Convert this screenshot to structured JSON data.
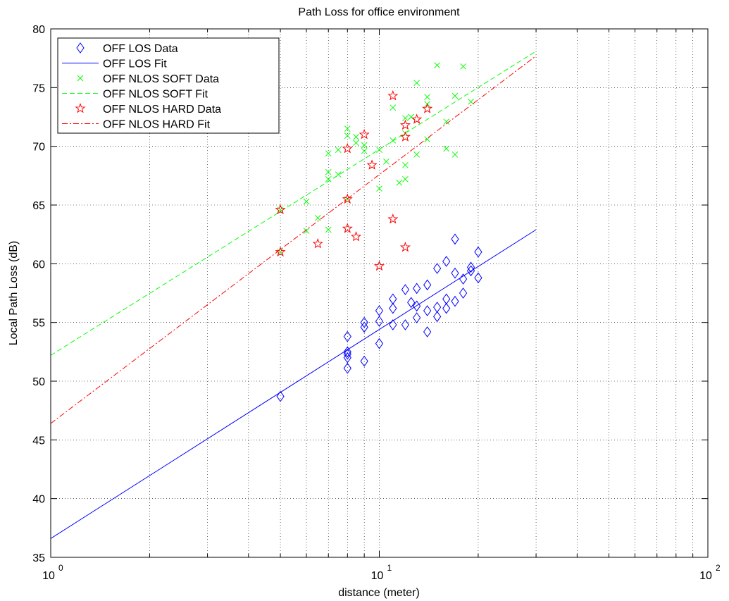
{
  "chart_data": {
    "type": "scatter",
    "title": "Path Loss for office environment",
    "xlabel": "distance (meter)",
    "ylabel": "Local Path Loss (dB)",
    "xscale": "log",
    "xlim": [
      1,
      100
    ],
    "ylim": [
      35,
      80
    ],
    "grid": true,
    "legend_position": "top-left",
    "x_ticks": [
      {
        "value": 1,
        "base": "10",
        "exp": "0"
      },
      {
        "value": 10,
        "base": "10",
        "exp": "1"
      },
      {
        "value": 100,
        "base": "10",
        "exp": "2"
      }
    ],
    "y_ticks": [
      "35",
      "40",
      "45",
      "50",
      "55",
      "60",
      "65",
      "70",
      "75",
      "80"
    ],
    "series": [
      {
        "name": "OFF LOS Data",
        "kind": "points",
        "marker": "diamond",
        "color": "#0000ff",
        "points": [
          [
            5,
            48.7
          ],
          [
            8,
            53.8
          ],
          [
            8,
            52.5
          ],
          [
            8,
            52.3
          ],
          [
            8,
            52.0
          ],
          [
            8,
            51.1
          ],
          [
            9,
            55.0
          ],
          [
            9,
            54.6
          ],
          [
            9,
            51.7
          ],
          [
            10,
            56.0
          ],
          [
            10,
            55.1
          ],
          [
            10,
            53.2
          ],
          [
            11,
            57.0
          ],
          [
            11,
            56.2
          ],
          [
            11,
            54.8
          ],
          [
            12,
            57.8
          ],
          [
            12,
            54.8
          ],
          [
            12.5,
            56.7
          ],
          [
            13,
            57.9
          ],
          [
            13,
            56.4
          ],
          [
            13,
            55.4
          ],
          [
            14,
            58.2
          ],
          [
            14,
            56.0
          ],
          [
            14,
            54.2
          ],
          [
            15,
            59.6
          ],
          [
            15,
            56.3
          ],
          [
            15,
            55.5
          ],
          [
            16,
            60.2
          ],
          [
            16,
            57.0
          ],
          [
            16,
            56.2
          ],
          [
            17,
            62.1
          ],
          [
            17,
            59.2
          ],
          [
            17,
            56.8
          ],
          [
            18,
            58.7
          ],
          [
            18,
            57.5
          ],
          [
            19,
            59.7
          ],
          [
            19,
            59.4
          ],
          [
            20,
            61.0
          ],
          [
            20,
            58.8
          ]
        ]
      },
      {
        "name": "OFF LOS Fit",
        "kind": "line",
        "dash": "solid",
        "color": "#0000ff",
        "points": [
          [
            1,
            36.6
          ],
          [
            30,
            62.9
          ]
        ]
      },
      {
        "name": "OFF NLOS SOFT Data",
        "kind": "points",
        "marker": "x",
        "color": "#00ff00",
        "points": [
          [
            5,
            64.6
          ],
          [
            5,
            61.0
          ],
          [
            6,
            65.3
          ],
          [
            6,
            62.8
          ],
          [
            6.5,
            63.9
          ],
          [
            7,
            69.4
          ],
          [
            7,
            67.8
          ],
          [
            7,
            67.2
          ],
          [
            7,
            62.9
          ],
          [
            7.5,
            69.7
          ],
          [
            7.5,
            67.6
          ],
          [
            8,
            71.5
          ],
          [
            8,
            70.9
          ],
          [
            8,
            65.5
          ],
          [
            8.5,
            70.8
          ],
          [
            8.5,
            70.3
          ],
          [
            9,
            70.1
          ],
          [
            9,
            69.6
          ],
          [
            10,
            69.7
          ],
          [
            10,
            66.4
          ],
          [
            10.5,
            68.7
          ],
          [
            11,
            73.3
          ],
          [
            11,
            70.5
          ],
          [
            11.5,
            66.9
          ],
          [
            12,
            72.4
          ],
          [
            12,
            71.1
          ],
          [
            12,
            68.4
          ],
          [
            12,
            67.2
          ],
          [
            12.5,
            72.5
          ],
          [
            13,
            75.4
          ],
          [
            13,
            69.3
          ],
          [
            14,
            74.2
          ],
          [
            14,
            73.6
          ],
          [
            14,
            70.6
          ],
          [
            15,
            76.9
          ],
          [
            16,
            72.1
          ],
          [
            16,
            69.8
          ],
          [
            17,
            74.3
          ],
          [
            17,
            69.3
          ],
          [
            18,
            76.8
          ],
          [
            19,
            73.8
          ]
        ]
      },
      {
        "name": "OFF NLOS SOFT Fit",
        "kind": "line",
        "dash": "dashed",
        "color": "#00ff00",
        "points": [
          [
            1,
            52.2
          ],
          [
            30,
            78.1
          ]
        ]
      },
      {
        "name": "OFF NLOS HARD Data",
        "kind": "points",
        "marker": "star",
        "color": "#ff0000",
        "points": [
          [
            5,
            64.6
          ],
          [
            5,
            61.0
          ],
          [
            6.5,
            61.7
          ],
          [
            8,
            69.8
          ],
          [
            8,
            65.5
          ],
          [
            8,
            63.0
          ],
          [
            8.5,
            62.3
          ],
          [
            9,
            71.0
          ],
          [
            9.5,
            68.4
          ],
          [
            10,
            59.8
          ],
          [
            11,
            74.3
          ],
          [
            11,
            63.8
          ],
          [
            12,
            71.8
          ],
          [
            12,
            70.8
          ],
          [
            12,
            61.4
          ],
          [
            13,
            72.3
          ],
          [
            14,
            73.2
          ]
        ]
      },
      {
        "name": "OFF NLOS HARD Fit",
        "kind": "line",
        "dash": "dashdot",
        "color": "#ff0000",
        "points": [
          [
            1,
            46.4
          ],
          [
            30,
            77.7
          ]
        ]
      }
    ]
  }
}
